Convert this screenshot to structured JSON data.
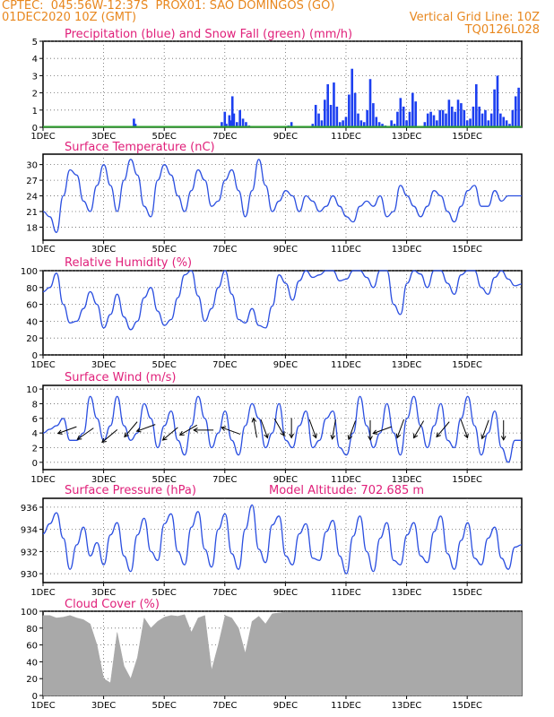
{
  "header": {
    "line1": "CPTEC:  045:56W-12:37S  PROX01: SAO DOMINGOS (GO)",
    "line2_left": "01DEC2020 10Z (GMT)",
    "line2_right": "Vertical Grid Line: 10Z",
    "code": "TQ0126L028"
  },
  "x_ticks": [
    "1DEC",
    "3DEC",
    "5DEC",
    "7DEC",
    "9DEC",
    "11DEC",
    "13DEC",
    "15DEC"
  ],
  "colors": {
    "header": "#e8871e",
    "title": "#e0207a",
    "line": "#2b4fe0",
    "precip": "#1c3ff0",
    "snow": "#2fa02f",
    "cloud": "#a9a9a9"
  },
  "chart_data": [
    {
      "type": "bar",
      "title": "Precipitation (blue) and Snow Fall (green) (mm/h)",
      "ylim": [
        0,
        5
      ],
      "yticks": [
        0,
        1,
        2,
        3,
        4,
        5
      ],
      "xlim": [
        0,
        15.8
      ],
      "x": [
        3.0,
        3.05,
        5.9,
        6.0,
        6.05,
        6.15,
        6.2,
        6.25,
        6.3,
        6.4,
        6.5,
        6.6,
        6.7,
        6.8,
        8.1,
        8.2,
        8.9,
        9.0,
        9.1,
        9.2,
        9.3,
        9.4,
        9.5,
        9.6,
        9.7,
        9.8,
        9.9,
        10.0,
        10.1,
        10.2,
        10.3,
        10.4,
        10.5,
        10.6,
        10.7,
        10.8,
        10.9,
        11.0,
        11.1,
        11.2,
        11.3,
        11.5,
        11.6,
        11.7,
        11.8,
        11.9,
        12.0,
        12.1,
        12.2,
        12.3,
        12.6,
        12.7,
        12.8,
        12.9,
        13.0,
        13.1,
        13.2,
        13.3,
        13.4,
        13.5,
        13.6,
        13.7,
        13.8,
        13.9,
        14.0,
        14.1,
        14.2,
        14.3,
        14.4,
        14.5,
        14.6,
        14.7,
        14.8,
        14.9,
        15.0,
        15.1,
        15.2,
        15.3,
        15.4,
        15.5,
        15.6,
        15.7
      ],
      "values": [
        0.5,
        0.2,
        0.3,
        0.9,
        0.2,
        0.7,
        0.4,
        1.8,
        0.8,
        0.3,
        1.0,
        0.5,
        0.3,
        0.1,
        0.1,
        0.3,
        0.2,
        1.3,
        0.8,
        0.4,
        1.6,
        2.5,
        1.3,
        2.6,
        1.2,
        0.3,
        0.4,
        0.6,
        1.9,
        3.4,
        2.0,
        0.8,
        0.4,
        0.3,
        1.0,
        2.8,
        1.4,
        0.6,
        0.3,
        0.2,
        0.1,
        0.4,
        0.2,
        0.9,
        1.7,
        1.2,
        0.4,
        0.9,
        2.0,
        1.5,
        0.3,
        0.8,
        0.9,
        0.7,
        0.4,
        1.0,
        1.0,
        0.8,
        1.6,
        1.2,
        0.9,
        1.6,
        1.4,
        1.0,
        0.4,
        0.5,
        1.2,
        2.5,
        1.2,
        0.8,
        1.0,
        0.4,
        0.8,
        2.2,
        3.0,
        0.8,
        0.6,
        0.4,
        0.2,
        1.0,
        1.8,
        2.3
      ],
      "snow": 0
    },
    {
      "type": "line",
      "title": "Surface Temperature (nC)",
      "ylim": [
        15.5,
        32
      ],
      "yticks": [
        18,
        21,
        24,
        27,
        30
      ],
      "xlim": [
        0,
        15.8
      ],
      "values": [
        21,
        20,
        17,
        24,
        29,
        28,
        23,
        21,
        26,
        30,
        26,
        21,
        27,
        31,
        28,
        22,
        20,
        27,
        30,
        28,
        24,
        21,
        25,
        29,
        27,
        22,
        23,
        27,
        29,
        25,
        20,
        25,
        31,
        26,
        21,
        23,
        25,
        24,
        21,
        24,
        23,
        21,
        22,
        24,
        22,
        20,
        19,
        22,
        23,
        22,
        24,
        20,
        21,
        26,
        24,
        22,
        20,
        22,
        25,
        24,
        21,
        19,
        22,
        25,
        26,
        22,
        22,
        25,
        23,
        24,
        24,
        24
      ]
    },
    {
      "type": "line",
      "title": "Relative Humidity (%)",
      "ylim": [
        0,
        100
      ],
      "yticks": [
        0,
        20,
        40,
        60,
        80,
        100
      ],
      "xlim": [
        0,
        15.8
      ],
      "values": [
        75,
        80,
        97,
        60,
        38,
        40,
        55,
        75,
        60,
        32,
        48,
        72,
        45,
        30,
        40,
        68,
        80,
        52,
        35,
        42,
        68,
        95,
        100,
        70,
        40,
        55,
        80,
        100,
        72,
        42,
        38,
        55,
        35,
        32,
        58,
        95,
        85,
        65,
        88,
        100,
        92,
        95,
        100,
        100,
        88,
        90,
        100,
        100,
        92,
        80,
        100,
        100,
        60,
        48,
        85,
        100,
        96,
        80,
        100,
        100,
        85,
        72,
        95,
        100,
        100,
        80,
        72,
        92,
        100,
        90,
        82,
        84
      ]
    },
    {
      "type": "line",
      "title": "Surface Wind (m/s)",
      "ylim": [
        -1,
        10.5
      ],
      "yticks": [
        0,
        2,
        4,
        6,
        8,
        10
      ],
      "xlim": [
        0,
        15.8
      ],
      "values": [
        4,
        4.5,
        5,
        6,
        3,
        3,
        4,
        9,
        6,
        3,
        5,
        9,
        5,
        3,
        4,
        8,
        6,
        2,
        5,
        7,
        3,
        1,
        5,
        9,
        6,
        2,
        4,
        7,
        3,
        1,
        5,
        8,
        6,
        2,
        4,
        8,
        3,
        2,
        5,
        7,
        2,
        3,
        6,
        7,
        2,
        1,
        4,
        9,
        5,
        2,
        4,
        8,
        4,
        1,
        6,
        9,
        5,
        2,
        5,
        8,
        3,
        2,
        6,
        9,
        5,
        1,
        4,
        7,
        2,
        0,
        3,
        3
      ],
      "arrows": [
        {
          "x": 0.8,
          "y": 4.4,
          "dir": 200
        },
        {
          "x": 1.4,
          "y": 3.9,
          "dir": 215
        },
        {
          "x": 2.2,
          "y": 3.6,
          "dir": 220
        },
        {
          "x": 2.9,
          "y": 4.5,
          "dir": 230
        },
        {
          "x": 3.4,
          "y": 4.7,
          "dir": 200
        },
        {
          "x": 4.2,
          "y": 3.9,
          "dir": 220
        },
        {
          "x": 4.8,
          "y": 4.4,
          "dir": 210
        },
        {
          "x": 5.3,
          "y": 4.4,
          "dir": 180
        },
        {
          "x": 6.2,
          "y": 4.3,
          "dir": 160
        },
        {
          "x": 7.0,
          "y": 4.7,
          "dir": 100
        },
        {
          "x": 7.3,
          "y": 4.6,
          "dir": 290
        },
        {
          "x": 7.8,
          "y": 4.8,
          "dir": 300
        },
        {
          "x": 8.2,
          "y": 4.7,
          "dir": 270
        },
        {
          "x": 8.9,
          "y": 4.6,
          "dir": 290
        },
        {
          "x": 9.6,
          "y": 4.5,
          "dir": 260
        },
        {
          "x": 10.2,
          "y": 4.4,
          "dir": 250
        },
        {
          "x": 10.8,
          "y": 4.4,
          "dir": 270
        },
        {
          "x": 11.2,
          "y": 4.4,
          "dir": 200
        },
        {
          "x": 11.8,
          "y": 4.6,
          "dir": 250
        },
        {
          "x": 12.4,
          "y": 4.5,
          "dir": 240
        },
        {
          "x": 13.2,
          "y": 4.5,
          "dir": 230
        },
        {
          "x": 13.9,
          "y": 4.6,
          "dir": 290
        },
        {
          "x": 14.6,
          "y": 4.5,
          "dir": 250
        },
        {
          "x": 15.2,
          "y": 4.4,
          "dir": 270
        }
      ]
    },
    {
      "type": "line",
      "title": "Surface Pressure (hPa)",
      "subtitle": "Model Altitude: 702.685 m",
      "ylim": [
        929.2,
        936.8
      ],
      "yticks": [
        930,
        932,
        934,
        936
      ],
      "xlim": [
        0,
        15.8
      ],
      "values": [
        933.6,
        934.5,
        935.5,
        933.2,
        930.4,
        932.6,
        934.2,
        931.6,
        932.8,
        930.8,
        933.5,
        934.6,
        931.6,
        930.2,
        933.5,
        935.0,
        932.0,
        931.2,
        934.5,
        935.4,
        932.0,
        930.8,
        934.2,
        935.6,
        932.2,
        930.6,
        934.0,
        935.4,
        931.8,
        930.4,
        934.0,
        936.2,
        932.2,
        931.0,
        934.4,
        935.2,
        931.6,
        930.8,
        933.6,
        934.5,
        931.4,
        931.2,
        933.8,
        934.8,
        931.6,
        930.0,
        933.4,
        935.2,
        932.0,
        930.2,
        933.2,
        934.6,
        931.2,
        930.8,
        933.5,
        934.6,
        931.6,
        931.0,
        933.8,
        935.2,
        931.8,
        930.4,
        933.0,
        934.6,
        931.4,
        930.8,
        933.2,
        934.2,
        931.4,
        930.4,
        932.4,
        932.6
      ]
    },
    {
      "type": "area",
      "title": "Cloud Cover (%)",
      "ylim": [
        0,
        100
      ],
      "yticks": [
        0,
        20,
        40,
        60,
        80,
        100
      ],
      "xlim": [
        0,
        15.8
      ],
      "values": [
        95,
        95,
        92,
        93,
        95,
        92,
        90,
        85,
        60,
        20,
        15,
        75,
        35,
        20,
        45,
        92,
        80,
        88,
        93,
        95,
        94,
        96,
        75,
        92,
        95,
        30,
        60,
        95,
        92,
        80,
        50,
        88,
        94,
        85,
        97,
        98,
        99,
        99,
        99,
        99,
        99,
        99,
        99,
        99,
        99,
        99,
        99,
        99,
        99,
        99,
        99,
        99,
        99,
        99,
        99,
        99,
        99,
        99,
        99,
        99,
        99,
        99,
        99,
        99,
        99,
        99,
        99,
        99,
        99,
        99,
        99,
        99
      ]
    }
  ]
}
